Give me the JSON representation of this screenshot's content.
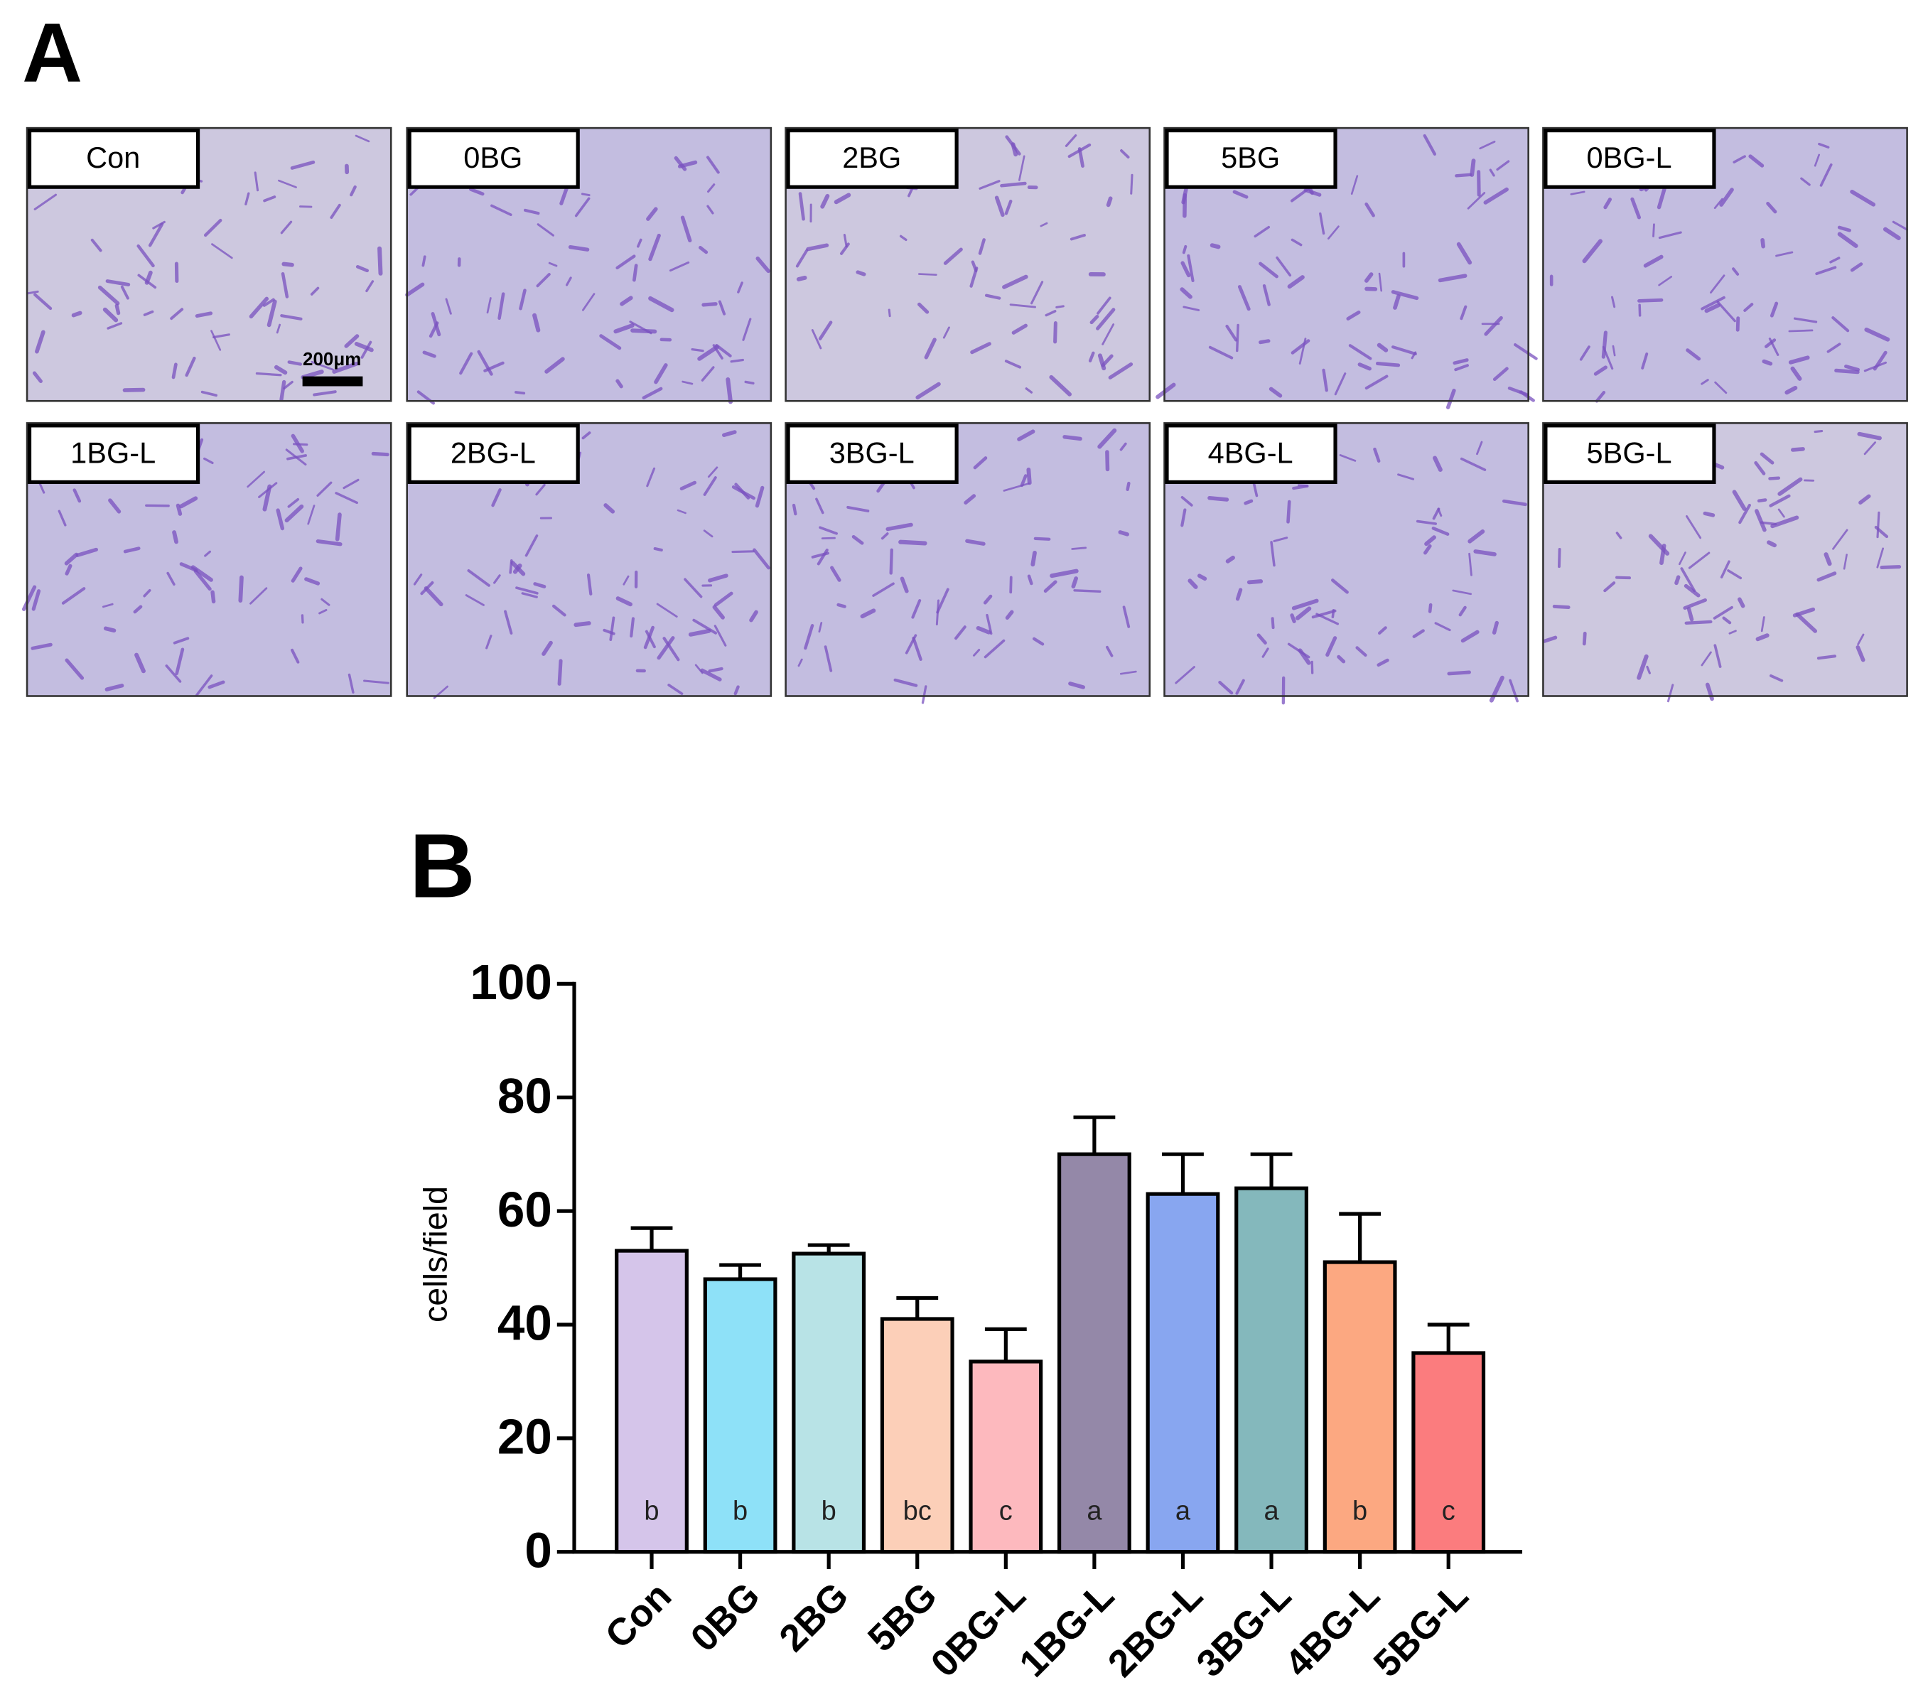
{
  "panel_a": {
    "label": "A",
    "images": [
      "Con",
      "0BG",
      "2BG",
      "5BG",
      "0BG-L",
      "1BG-L",
      "2BG-L",
      "3BG-L",
      "4BG-L",
      "5BG-L"
    ],
    "scale_bar": "200μm"
  },
  "panel_b_label": "B",
  "chart_data": {
    "type": "bar",
    "y_label": "cells/field",
    "categories": [
      "Con",
      "0BG",
      "2BG",
      "5BG",
      "0BG-L",
      "1BG-L",
      "2BG-L",
      "3BG-L",
      "4BG-L",
      "5BG-L"
    ],
    "values": [
      53,
      48,
      52.5,
      41,
      33.5,
      70,
      63,
      64,
      51,
      35
    ],
    "errors": [
      4,
      2.5,
      1.5,
      3.7,
      5.7,
      6.5,
      7,
      6,
      8.5,
      5
    ],
    "significance_labels": [
      "b",
      "b",
      "b",
      "bc",
      "c",
      "a",
      "a",
      "a",
      "b",
      "c"
    ],
    "colors": [
      "#d5c5ea",
      "#8ee1f8",
      "#b8e3e6",
      "#fccfb8",
      "#fdb9be",
      "#9488a8",
      "#88a6f0",
      "#84b8bc",
      "#fca881",
      "#fb7c7e"
    ],
    "ylim": [
      0,
      100
    ],
    "yticks": [
      0,
      20,
      40,
      60,
      80,
      100
    ],
    "grid": false
  }
}
